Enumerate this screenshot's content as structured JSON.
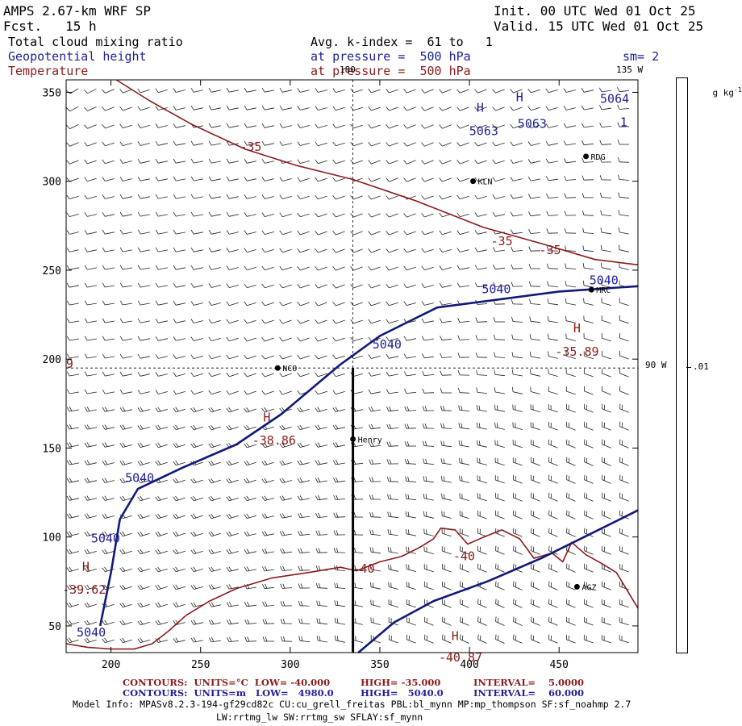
{
  "header": {
    "model": "AMPS 2.67-km WRF SP",
    "forecast": "Fcst.   15 h",
    "init": "Init. 00 UTC Wed 01 Oct 25",
    "valid": "Valid. 15 UTC Wed 01 Oct 25",
    "field_cloud": "Total cloud mixing ratio",
    "field_geop": "Geopotential height",
    "field_temp": "Temperature",
    "kindex": "Avg. k-index =  61 to   1",
    "pressure1": "at pressure =  500 hPa",
    "pressure2": "at pressure =  500 hPa",
    "smoothing": "sm= 2"
  },
  "colorbar": {
    "unit": "g kg",
    "unit_exp": "-1",
    "tick": ".01"
  },
  "meridians": {
    "lon180": "180",
    "lon135": "135 W",
    "lon90": "90 W"
  },
  "stations": [
    {
      "name": "KLN",
      "x": 402,
      "y": 300
    },
    {
      "name": "RDG",
      "x": 465,
      "y": 314
    },
    {
      "name": "MRC",
      "x": 468,
      "y": 239
    },
    {
      "name": "NCO",
      "x": 293,
      "y": 195
    },
    {
      "name": "Henry",
      "x": 335,
      "y": 155
    },
    {
      "name": "AGZ",
      "x": 460,
      "y": 72
    }
  ],
  "contour_labels": [
    {
      "text": "H",
      "color": "blue",
      "x": 406,
      "y": 339
    },
    {
      "text": "5063",
      "color": "blue",
      "x": 408,
      "y": 326
    },
    {
      "text": "H",
      "color": "blue",
      "x": 428,
      "y": 345
    },
    {
      "text": "5063",
      "color": "blue",
      "x": 435,
      "y": 330
    },
    {
      "text": "5064",
      "color": "blue",
      "x": 481,
      "y": 344
    },
    {
      "text": "1",
      "color": "blue",
      "x": 486,
      "y": 331
    },
    {
      "text": "5040",
      "color": "blue",
      "x": 354,
      "y": 206
    },
    {
      "text": "5040",
      "color": "blue",
      "x": 415,
      "y": 237
    },
    {
      "text": "5040",
      "color": "blue",
      "x": 475,
      "y": 242
    },
    {
      "text": "5040",
      "color": "blue",
      "x": 216,
      "y": 131
    },
    {
      "text": "5040",
      "color": "blue",
      "x": 197,
      "y": 97
    },
    {
      "text": "5040",
      "color": "blue",
      "x": 189,
      "y": 44
    },
    {
      "text": "-35",
      "color": "red",
      "x": 278,
      "y": 317
    },
    {
      "text": "-35",
      "color": "red",
      "x": 418,
      "y": 264
    },
    {
      "text": "-35",
      "color": "red",
      "x": 445,
      "y": 259
    },
    {
      "text": "H",
      "color": "red",
      "x": 460,
      "y": 215
    },
    {
      "text": "-35.89",
      "color": "red",
      "x": 460,
      "y": 202
    },
    {
      "text": "H",
      "color": "red",
      "x": 287,
      "y": 165
    },
    {
      "text": "-38.86",
      "color": "red",
      "x": 291,
      "y": 152
    },
    {
      "text": "H",
      "color": "red",
      "x": 186,
      "y": 81
    },
    {
      "text": "-39.62",
      "color": "red",
      "x": 185,
      "y": 68
    },
    {
      "text": "-40",
      "color": "red",
      "x": 341,
      "y": 80
    },
    {
      "text": "-40",
      "color": "red",
      "x": 397,
      "y": 87
    },
    {
      "text": "H",
      "color": "red",
      "x": 392,
      "y": 42
    },
    {
      "text": "-40.87",
      "color": "red",
      "x": 395,
      "y": 30
    },
    {
      "text": "9",
      "color": "red",
      "x": 177,
      "y": 195
    }
  ],
  "footer": {
    "temp_contours": "CONTOURS:  UNITS=°C  LOW= -40.000",
    "temp_high": "HIGH= -35.000",
    "temp_interval": "INTERVAL=    5.0000",
    "geop_contours": "CONTOURS:  UNITS=m   LOW=   4980.0",
    "geop_high": "HIGH=   5040.0",
    "geop_interval": "INTERVAL=    60.000",
    "model_info": "Model Info: MPASv8.2.3-194-gf29cd82c CU:cu_grell_freitas PBL:bl_mynn MP:mp_thompson SF:sf_noahmp 2.7",
    "model_info2": "LW:rrtmg_lw SW:rrtmg_sw SFLAY:sf_mynn"
  },
  "chart_data": {
    "type": "contour map",
    "x_ticks": [
      200,
      250,
      300,
      350,
      400,
      450
    ],
    "y_ticks": [
      50,
      100,
      150,
      200,
      250,
      300,
      350
    ],
    "xlim": [
      175,
      494
    ],
    "ylim": [
      35,
      357
    ],
    "series": [
      {
        "name": "Temperature",
        "color": "#8b1a1a",
        "contours": [
          {
            "level": "-35",
            "points": [
              [
                203,
                357
              ],
              [
                222,
                345
              ],
              [
                245,
                332
              ],
              [
                275,
                318
              ],
              [
                303,
                309
              ],
              [
                335,
                301
              ],
              [
                370,
                289
              ],
              [
                408,
                274
              ],
              [
                440,
                265
              ],
              [
                470,
                256
              ],
              [
                494,
                253
              ]
            ]
          },
          {
            "level": "-40",
            "points": [
              [
                175,
                40
              ],
              [
                187,
                38
              ],
              [
                200,
                37
              ],
              [
                213,
                37
              ],
              [
                223,
                40
              ],
              [
                232,
                47
              ],
              [
                242,
                56
              ],
              [
                255,
                64
              ],
              [
                270,
                71
              ],
              [
                290,
                77
              ],
              [
                310,
                80
              ],
              [
                328,
                83
              ],
              [
                337,
                81
              ],
              [
                350,
                86
              ],
              [
                362,
                89
              ],
              [
                372,
                94
              ],
              [
                380,
                99
              ],
              [
                384,
                105
              ],
              [
                392,
                104
              ],
              [
                399,
                96
              ],
              [
                408,
                100
              ],
              [
                418,
                104
              ],
              [
                428,
                99
              ],
              [
                436,
                88
              ],
              [
                446,
                91
              ],
              [
                452,
                86
              ],
              [
                457,
                97
              ],
              [
                465,
                90
              ],
              [
                474,
                85
              ],
              [
                482,
                80
              ],
              [
                494,
                60
              ]
            ]
          }
        ]
      },
      {
        "name": "Geopotential height",
        "color": "#0f1a7a",
        "contours": [
          {
            "level": "5040",
            "points": [
              [
                194,
                50
              ],
              [
                200,
                80
              ],
              [
                205,
                110
              ],
              [
                215,
                127
              ],
              [
                240,
                139
              ],
              [
                270,
                152
              ],
              [
                295,
                169
              ],
              [
                315,
                186
              ],
              [
                328,
                197
              ],
              [
                350,
                213
              ],
              [
                382,
                229
              ],
              [
                420,
                234
              ],
              [
                450,
                238
              ],
              [
                494,
                241
              ]
            ]
          },
          {
            "level": "5040 (south)",
            "points": [
              [
                338,
                35
              ],
              [
                358,
                52
              ],
              [
                380,
                64
              ],
              [
                410,
                75
              ],
              [
                440,
                88
              ],
              [
                470,
                103
              ],
              [
                494,
                115
              ]
            ]
          }
        ]
      },
      {
        "name": "Section line",
        "color": "#000000",
        "contours": [
          {
            "level": "",
            "points": [
              [
                335,
                35
              ],
              [
                335,
                195
              ]
            ]
          }
        ]
      }
    ],
    "reference_lines": {
      "x": 335,
      "y": 195
    }
  }
}
